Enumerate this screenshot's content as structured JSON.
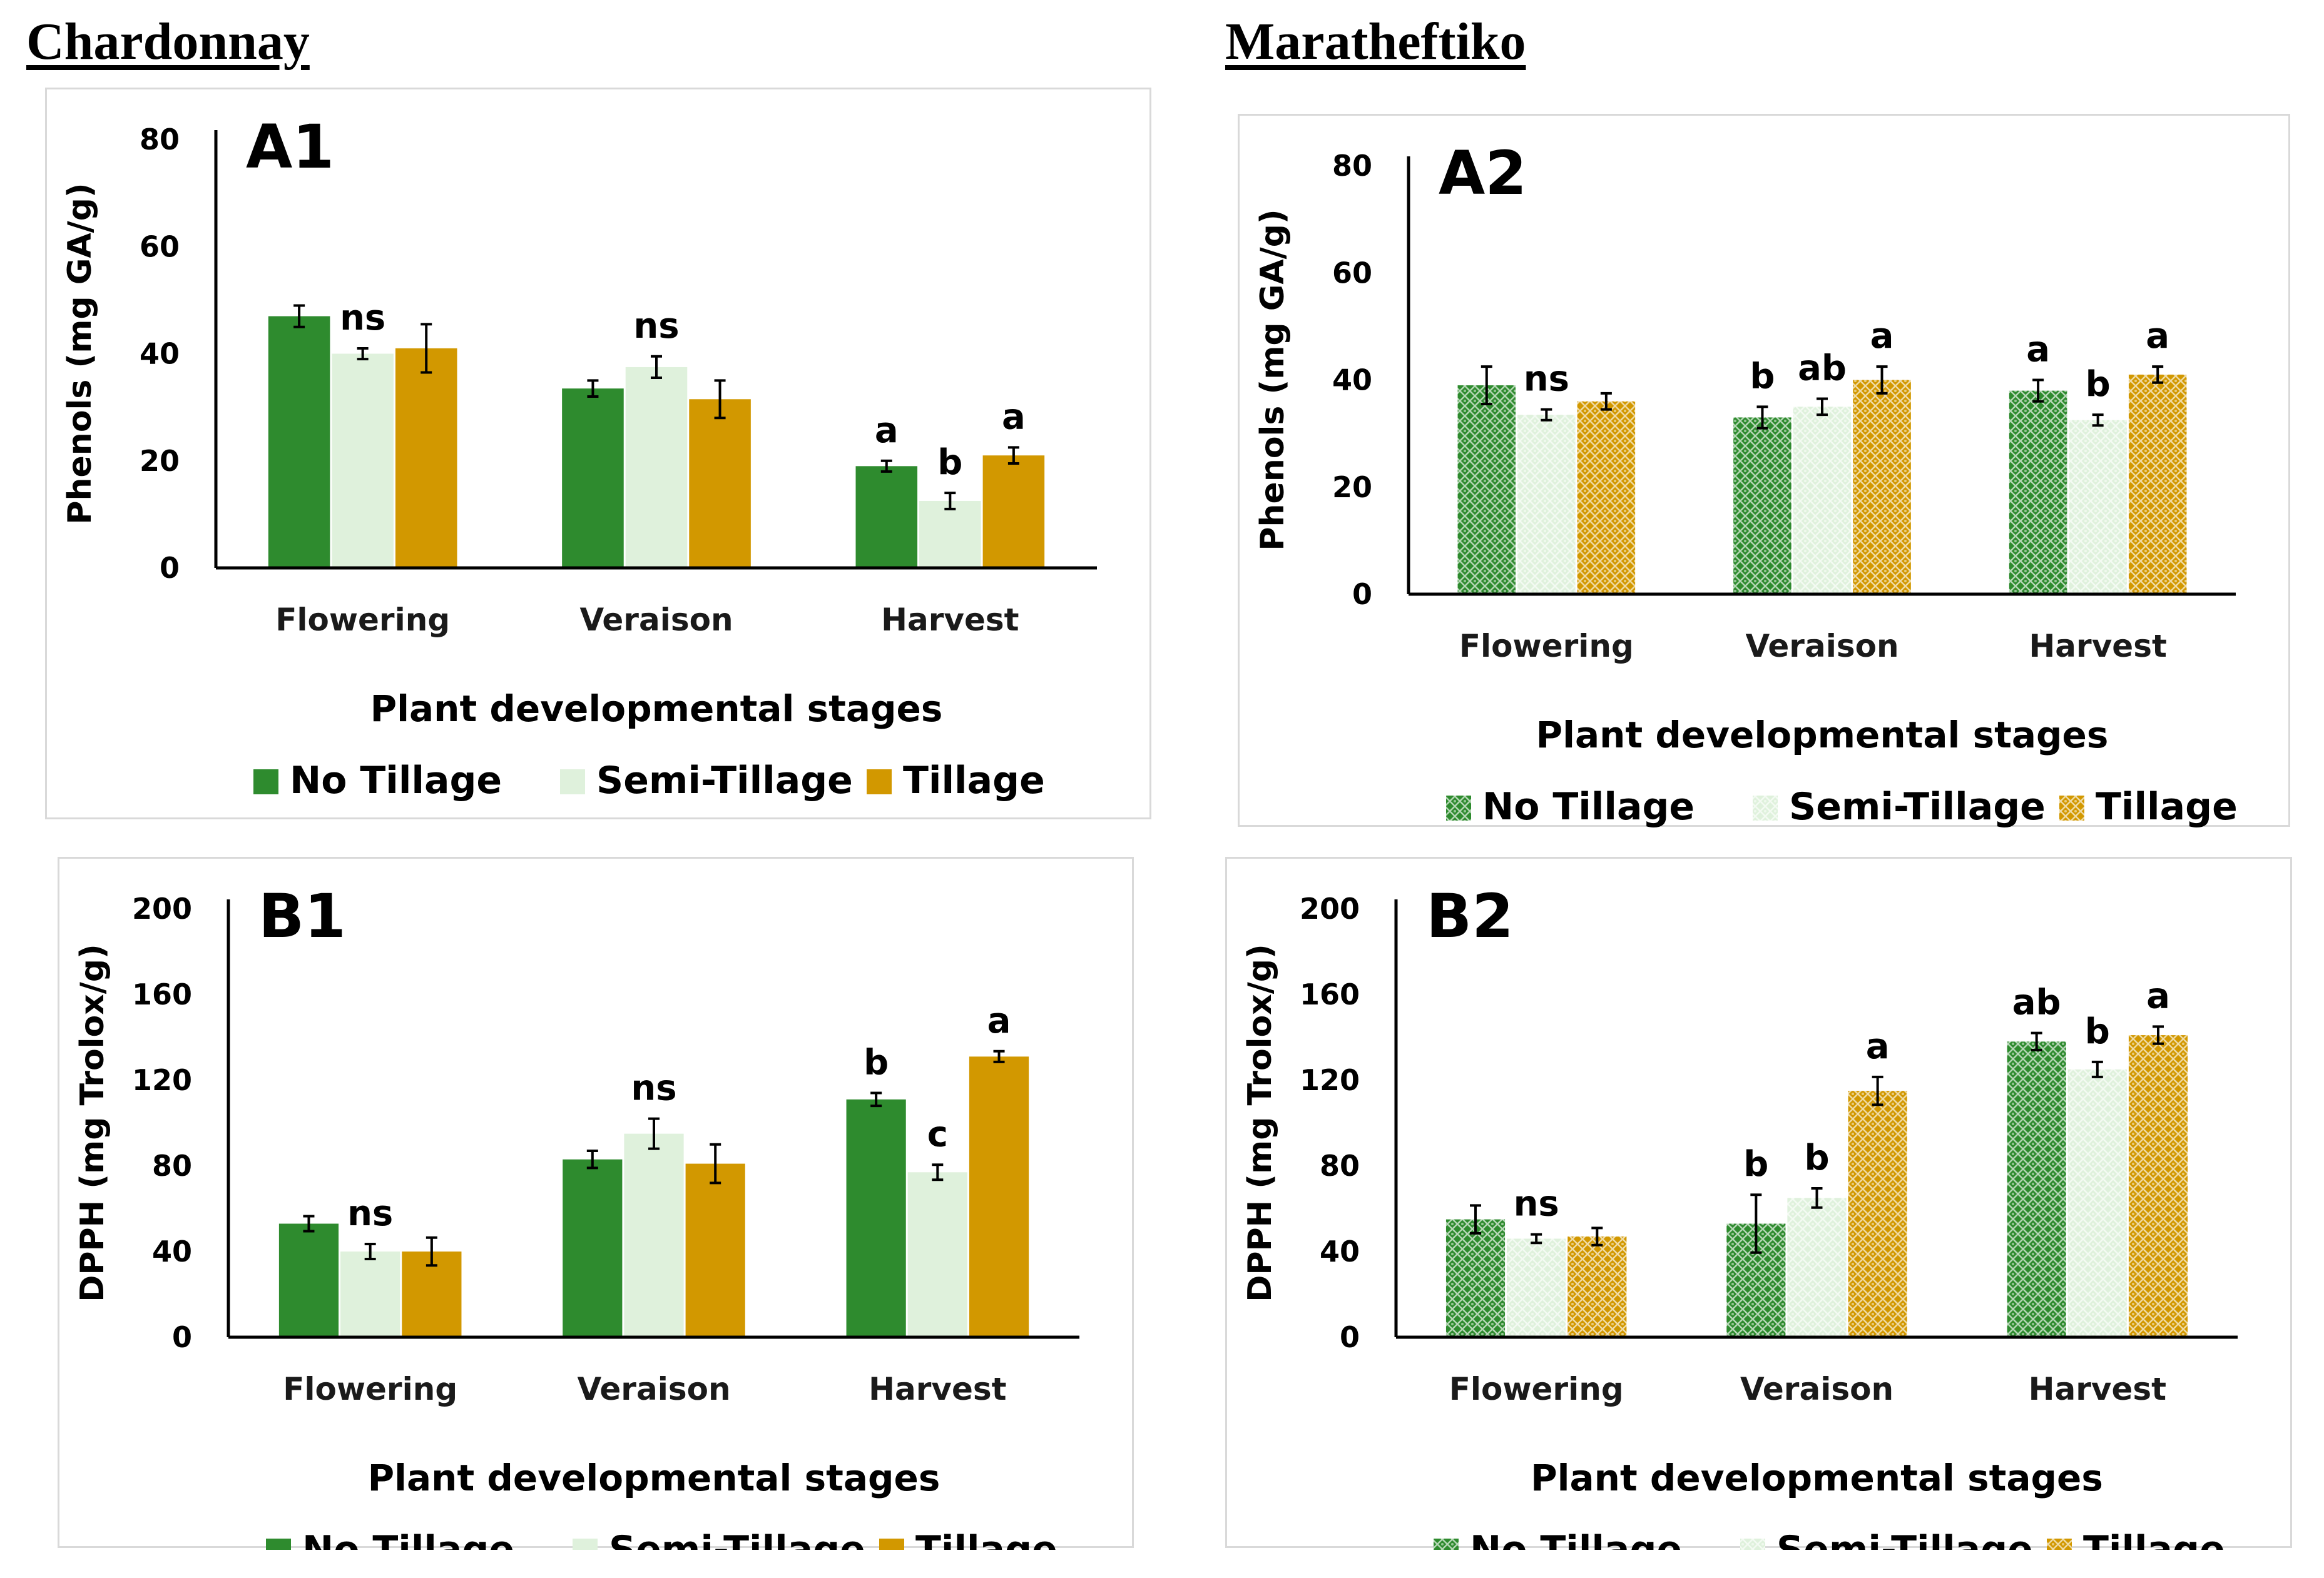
{
  "headings": {
    "left": "Chardonnay",
    "right": "Maratheftiko"
  },
  "colors": {
    "no_tillage": "#2e8b2e",
    "semi_tillage": "#dff1dc",
    "tillage": "#d29800"
  },
  "chart_data": [
    {
      "id": "A1",
      "type": "bar",
      "panel_label": "A1",
      "variety": "Chardonnay",
      "pattern": false,
      "xlabel": "Plant developmental stages",
      "ylabel": "Phenols (mg GA/g)",
      "ylim": [
        0,
        80
      ],
      "yticks": [
        0,
        20,
        40,
        60,
        80
      ],
      "categories": [
        "Flowering",
        "Veraison",
        "Harvest"
      ],
      "series": [
        {
          "name": "No Tillage",
          "values": [
            47,
            33.5,
            19
          ],
          "errors": [
            2,
            1.5,
            1
          ]
        },
        {
          "name": "Semi-Tillage",
          "values": [
            40,
            37.5,
            12.5
          ],
          "errors": [
            1,
            2,
            1.5
          ]
        },
        {
          "name": "Tillage",
          "values": [
            41,
            31.5,
            21
          ],
          "errors": [
            4.5,
            3.5,
            1.5
          ]
        }
      ],
      "annotations": [
        {
          "category": 0,
          "series": 1,
          "text": "ns"
        },
        {
          "category": 1,
          "series": 1,
          "text": "ns"
        },
        {
          "category": 2,
          "series": 0,
          "text": "a"
        },
        {
          "category": 2,
          "series": 1,
          "text": "b"
        },
        {
          "category": 2,
          "series": 2,
          "text": "a"
        }
      ],
      "legend": [
        "No Tillage",
        "Semi-Tillage",
        "Tillage"
      ]
    },
    {
      "id": "A2",
      "type": "bar",
      "panel_label": "A2",
      "variety": "Maratheftiko",
      "pattern": true,
      "xlabel": "Plant developmental stages",
      "ylabel": "Phenols (mg GA/g)",
      "ylim": [
        0,
        80
      ],
      "yticks": [
        0,
        20,
        40,
        60,
        80
      ],
      "categories": [
        "Flowering",
        "Veraison",
        "Harvest"
      ],
      "series": [
        {
          "name": "No Tillage",
          "values": [
            39,
            33,
            38
          ],
          "errors": [
            3.5,
            2,
            2
          ]
        },
        {
          "name": "Semi-Tillage",
          "values": [
            33.5,
            35,
            32.5
          ],
          "errors": [
            1,
            1.5,
            1
          ]
        },
        {
          "name": "Tillage",
          "values": [
            36,
            40,
            41
          ],
          "errors": [
            1.5,
            2.5,
            1.5
          ]
        }
      ],
      "annotations": [
        {
          "category": 0,
          "series": 1,
          "text": "ns"
        },
        {
          "category": 1,
          "series": 0,
          "text": "b"
        },
        {
          "category": 1,
          "series": 1,
          "text": "ab"
        },
        {
          "category": 1,
          "series": 2,
          "text": "a"
        },
        {
          "category": 2,
          "series": 0,
          "text": "a"
        },
        {
          "category": 2,
          "series": 1,
          "text": "b"
        },
        {
          "category": 2,
          "series": 2,
          "text": "a"
        }
      ],
      "legend": [
        "No Tillage",
        "Semi-Tillage",
        "Tillage"
      ]
    },
    {
      "id": "B1",
      "type": "bar",
      "panel_label": "B1",
      "variety": "Chardonnay",
      "pattern": false,
      "xlabel": "Plant developmental stages",
      "ylabel": "DPPH (mg Trolox/g)",
      "ylim": [
        0,
        200
      ],
      "yticks": [
        0,
        40,
        80,
        120,
        160,
        200
      ],
      "categories": [
        "Flowering",
        "Veraison",
        "Harvest"
      ],
      "series": [
        {
          "name": "No Tillage",
          "values": [
            53,
            83,
            111
          ],
          "errors": [
            3.5,
            4,
            3
          ]
        },
        {
          "name": "Semi-Tillage",
          "values": [
            40,
            95,
            77
          ],
          "errors": [
            3.5,
            7,
            3.5
          ]
        },
        {
          "name": "Tillage",
          "values": [
            40,
            81,
            131
          ],
          "errors": [
            6.5,
            9,
            2.5
          ]
        }
      ],
      "annotations": [
        {
          "category": 0,
          "series": 1,
          "text": "ns"
        },
        {
          "category": 1,
          "series": 1,
          "text": "ns"
        },
        {
          "category": 2,
          "series": 0,
          "text": "b"
        },
        {
          "category": 2,
          "series": 1,
          "text": "c"
        },
        {
          "category": 2,
          "series": 2,
          "text": "a"
        }
      ],
      "legend": [
        "No Tillage",
        "Semi-Tillage",
        "Tillage"
      ]
    },
    {
      "id": "B2",
      "type": "bar",
      "panel_label": "B2",
      "variety": "Maratheftiko",
      "pattern": true,
      "xlabel": "Plant developmental stages",
      "ylabel": "DPPH (mg Trolox/g)",
      "ylim": [
        0,
        200
      ],
      "yticks": [
        0,
        40,
        80,
        120,
        160,
        200
      ],
      "categories": [
        "Flowering",
        "Veraison",
        "Harvest"
      ],
      "series": [
        {
          "name": "No Tillage",
          "values": [
            55,
            53,
            138
          ],
          "errors": [
            6.5,
            13.5,
            4
          ]
        },
        {
          "name": "Semi-Tillage",
          "values": [
            46,
            65,
            125
          ],
          "errors": [
            2,
            4.5,
            3.5
          ]
        },
        {
          "name": "Tillage",
          "values": [
            47,
            115,
            141
          ],
          "errors": [
            4,
            6.5,
            4
          ]
        }
      ],
      "annotations": [
        {
          "category": 0,
          "series": 1,
          "text": "ns"
        },
        {
          "category": 1,
          "series": 0,
          "text": "b"
        },
        {
          "category": 1,
          "series": 1,
          "text": "b"
        },
        {
          "category": 1,
          "series": 2,
          "text": "a"
        },
        {
          "category": 2,
          "series": 0,
          "text": "ab"
        },
        {
          "category": 2,
          "series": 1,
          "text": "b"
        },
        {
          "category": 2,
          "series": 2,
          "text": "a"
        }
      ],
      "legend": [
        "No Tillage",
        "Semi-Tillage",
        "Tillage"
      ]
    }
  ]
}
